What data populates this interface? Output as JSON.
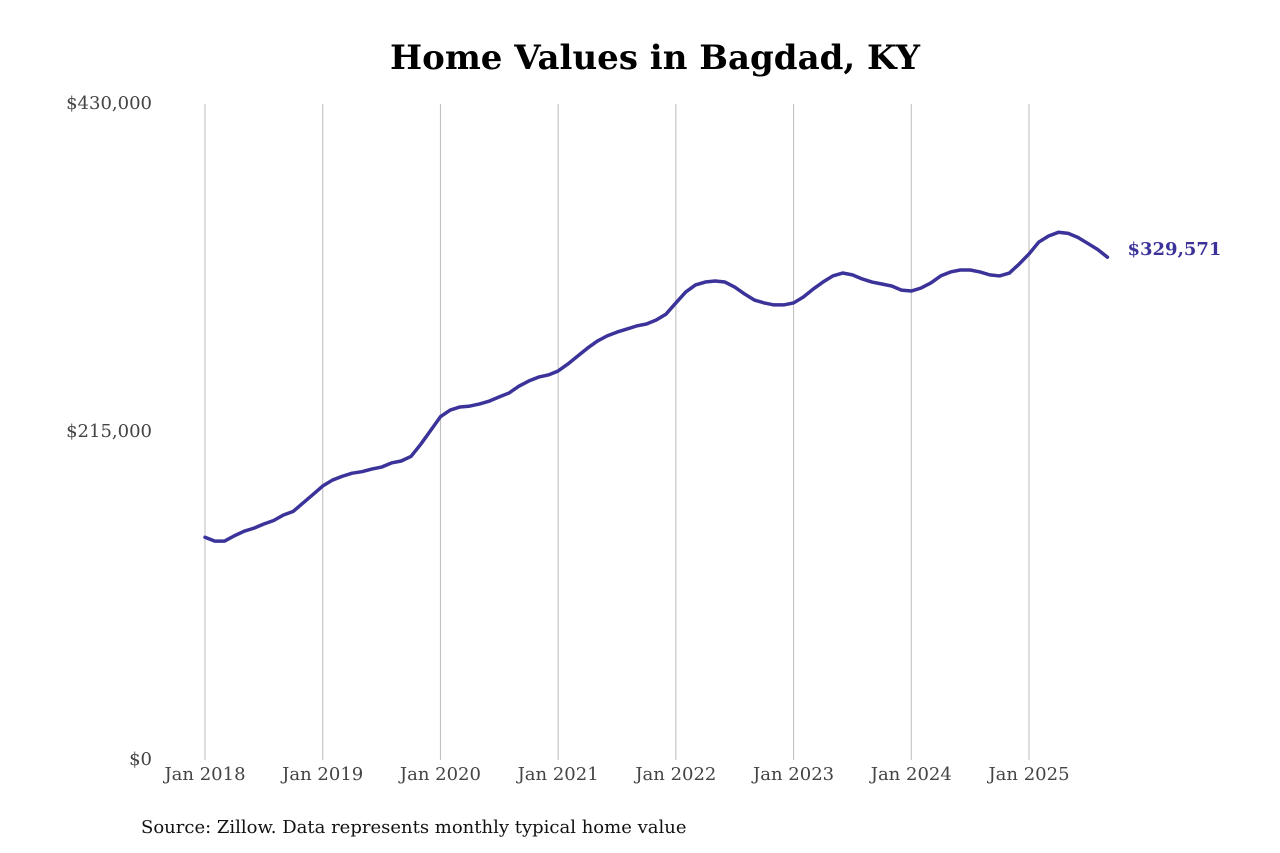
{
  "chart_data": {
    "type": "line",
    "title": "Home Values in Bagdad, KY",
    "source": "Source: Zillow. Data represents monthly typical home value",
    "categories": [
      "Jan 2018",
      null,
      null,
      null,
      null,
      null,
      null,
      null,
      null,
      null,
      null,
      null,
      "Jan 2019",
      null,
      null,
      null,
      null,
      null,
      null,
      null,
      null,
      null,
      null,
      null,
      "Jan 2020",
      null,
      null,
      null,
      null,
      null,
      null,
      null,
      null,
      null,
      null,
      null,
      "Jan 2021",
      null,
      null,
      null,
      null,
      null,
      null,
      null,
      null,
      null,
      null,
      null,
      "Jan 2022",
      null,
      null,
      null,
      null,
      null,
      null,
      null,
      null,
      null,
      null,
      null,
      "Jan 2023",
      null,
      null,
      null,
      null,
      null,
      null,
      null,
      null,
      null,
      null,
      null,
      "Jan 2024",
      null,
      null,
      null,
      null,
      null,
      null,
      null,
      null,
      null,
      null,
      null,
      "Jan 2025",
      null,
      null,
      null,
      null,
      null,
      null,
      null,
      null
    ],
    "values": [
      146000,
      143500,
      143500,
      147000,
      150000,
      152000,
      154700,
      157000,
      160600,
      163000,
      168500,
      174000,
      179600,
      183500,
      186000,
      188000,
      189000,
      190700,
      192000,
      194700,
      196000,
      199000,
      207000,
      216000,
      225000,
      229400,
      231400,
      232000,
      233400,
      235300,
      238000,
      240600,
      245000,
      248400,
      251000,
      252400,
      255000,
      259600,
      264800,
      270000,
      274600,
      278000,
      280500,
      282500,
      284500,
      285800,
      288400,
      292300,
      299600,
      306700,
      311400,
      313300,
      314000,
      313300,
      310000,
      305500,
      301500,
      299600,
      298300,
      298300,
      299600,
      303500,
      308700,
      313300,
      317300,
      319200,
      318000,
      315300,
      313300,
      312000,
      310700,
      308000,
      307400,
      309400,
      312700,
      317300,
      319900,
      321200,
      321200,
      319900,
      318000,
      317300,
      319200,
      325100,
      331700,
      339500,
      343500,
      345900,
      345200,
      342500,
      338600,
      334600,
      329571
    ],
    "value_labels": [
      null,
      null,
      null,
      null,
      null,
      null,
      null,
      null,
      null,
      null,
      null,
      null,
      null,
      null,
      null,
      null,
      null,
      null,
      null,
      null,
      null,
      null,
      null,
      null,
      null,
      null,
      null,
      null,
      null,
      null,
      null,
      null,
      null,
      null,
      null,
      null,
      null,
      null,
      null,
      null,
      null,
      null,
      null,
      null,
      null,
      null,
      null,
      null,
      null,
      null,
      null,
      null,
      null,
      null,
      null,
      null,
      null,
      null,
      null,
      null,
      null,
      null,
      null,
      null,
      null,
      null,
      null,
      null,
      null,
      null,
      null,
      null,
      null,
      null,
      null,
      null,
      null,
      null,
      null,
      null,
      null,
      null,
      null,
      null,
      null,
      null,
      null,
      null,
      null,
      null,
      null,
      null,
      "$329,571"
    ],
    "color": "#3b3399",
    "ylim": [
      0,
      430000
    ],
    "yticks": [
      {
        "value": 0,
        "label": "$0"
      },
      {
        "value": 215000,
        "label": "$215,000"
      },
      {
        "value": 430000,
        "label": "$430,000"
      }
    ],
    "x_grid": true,
    "y_grid": false
  }
}
